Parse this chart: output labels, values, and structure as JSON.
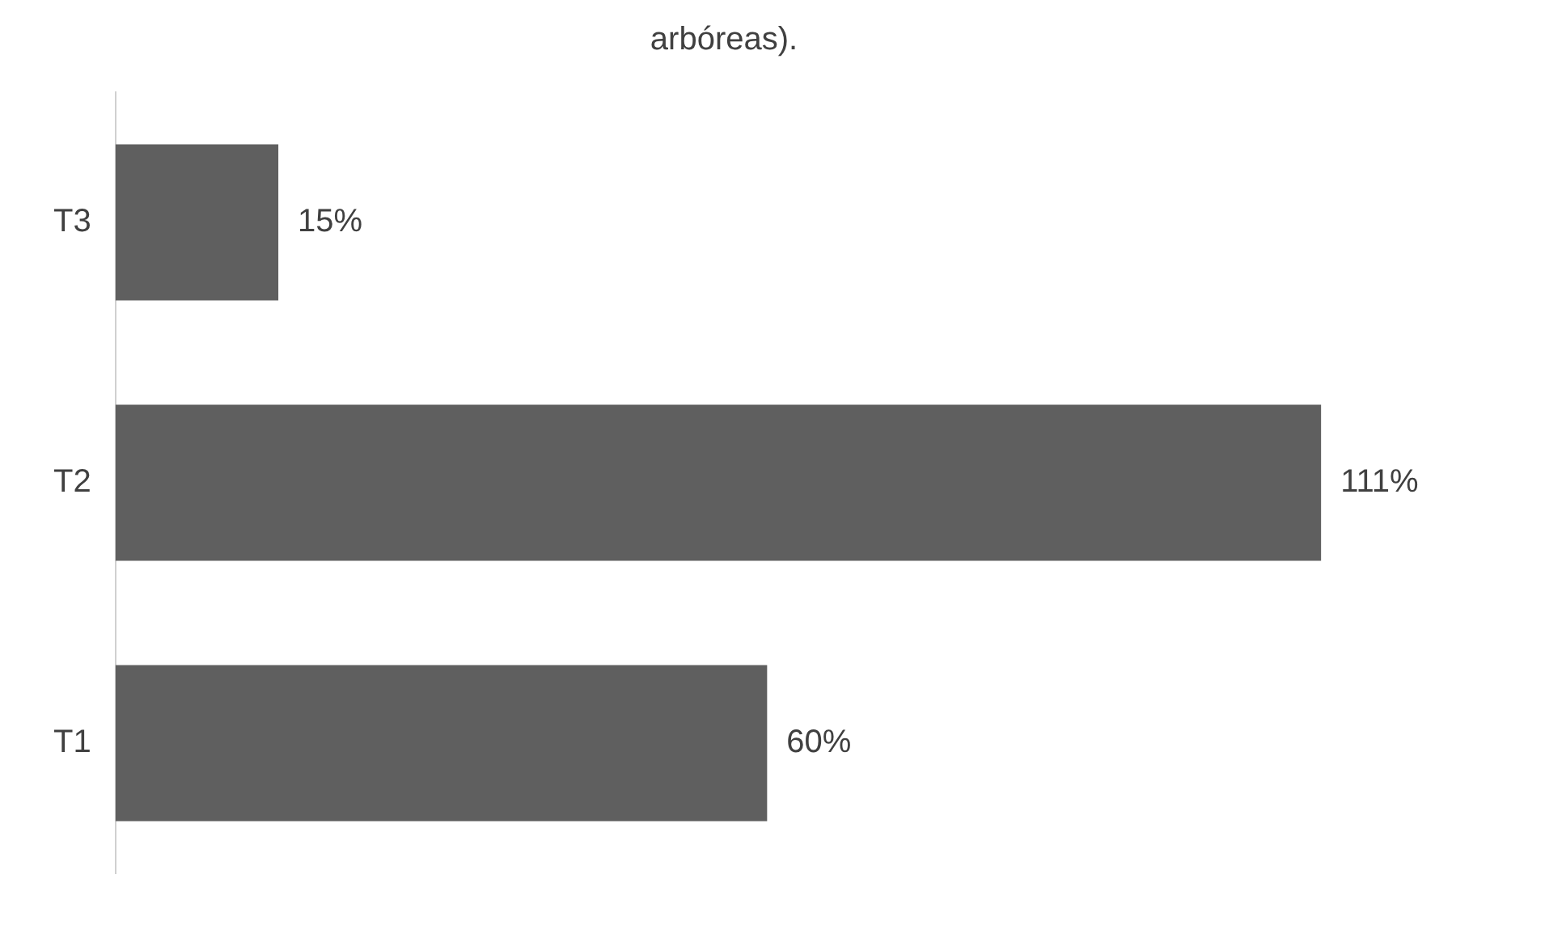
{
  "chart_data": {
    "type": "bar",
    "orientation": "horizontal",
    "title": "arbóreas).",
    "categories": [
      "T3",
      "T2",
      "T1"
    ],
    "values": [
      15,
      111,
      60
    ],
    "color": "#5f5f5f",
    "value_labels": [
      "15%",
      "111%",
      "60%"
    ],
    "tick_labels": "y",
    "grid": false,
    "legend": false
  }
}
